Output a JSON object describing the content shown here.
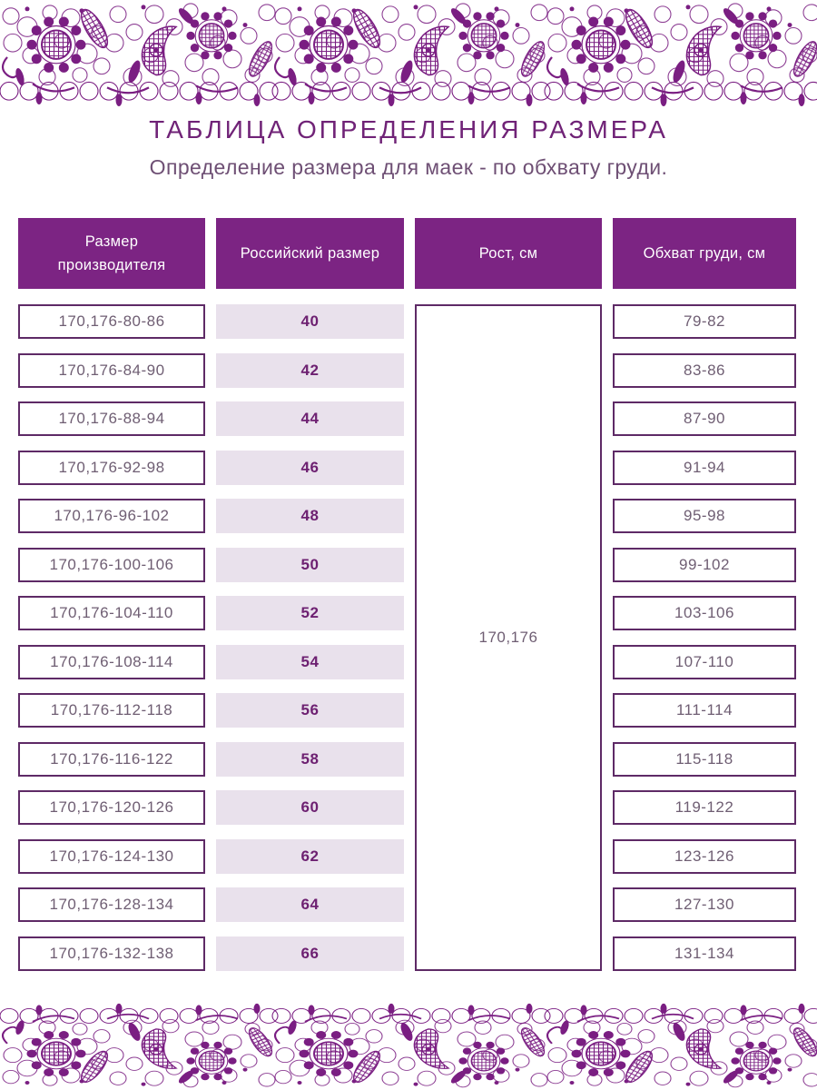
{
  "page": {
    "title": "ТАБЛИЦА ОПРЕДЕЛЕНИЯ РАЗМЕРА",
    "subtitle": "Определение размера для маек - по обхвату груди."
  },
  "table": {
    "headers": {
      "manufacturer": "Размер производителя",
      "russian": "Российский размер",
      "height": "Рост, см",
      "chest": "Обхват груди, см"
    },
    "height_value": "170,176",
    "rows": [
      {
        "manufacturer": "170,176-80-86",
        "ru": "40",
        "chest": "79-82"
      },
      {
        "manufacturer": "170,176-84-90",
        "ru": "42",
        "chest": "83-86"
      },
      {
        "manufacturer": "170,176-88-94",
        "ru": "44",
        "chest": "87-90"
      },
      {
        "manufacturer": "170,176-92-98",
        "ru": "46",
        "chest": "91-94"
      },
      {
        "manufacturer": "170,176-96-102",
        "ru": "48",
        "chest": "95-98"
      },
      {
        "manufacturer": "170,176-100-106",
        "ru": "50",
        "chest": "99-102"
      },
      {
        "manufacturer": "170,176-104-110",
        "ru": "52",
        "chest": "103-106"
      },
      {
        "manufacturer": "170,176-108-114",
        "ru": "54",
        "chest": "107-110"
      },
      {
        "manufacturer": "170,176-112-118",
        "ru": "56",
        "chest": "111-114"
      },
      {
        "manufacturer": "170,176-116-122",
        "ru": "58",
        "chest": "115-118"
      },
      {
        "manufacturer": "170,176-120-126",
        "ru": "60",
        "chest": "119-122"
      },
      {
        "manufacturer": "170,176-124-130",
        "ru": "62",
        "chest": "123-126"
      },
      {
        "manufacturer": "170,176-128-134",
        "ru": "64",
        "chest": "127-130"
      },
      {
        "manufacturer": "170,176-132-138",
        "ru": "66",
        "chest": "131-134"
      }
    ]
  },
  "colors": {
    "lace": "#7a1e82",
    "header_bg": "#7c2483",
    "row_alt_bg": "#e9e1ec",
    "box_border": "#5e2a66",
    "cell_text": "#6f5e73",
    "accent_text": "#6d2071",
    "title_text": "#702377",
    "subtitle_text": "#6e4f74"
  }
}
